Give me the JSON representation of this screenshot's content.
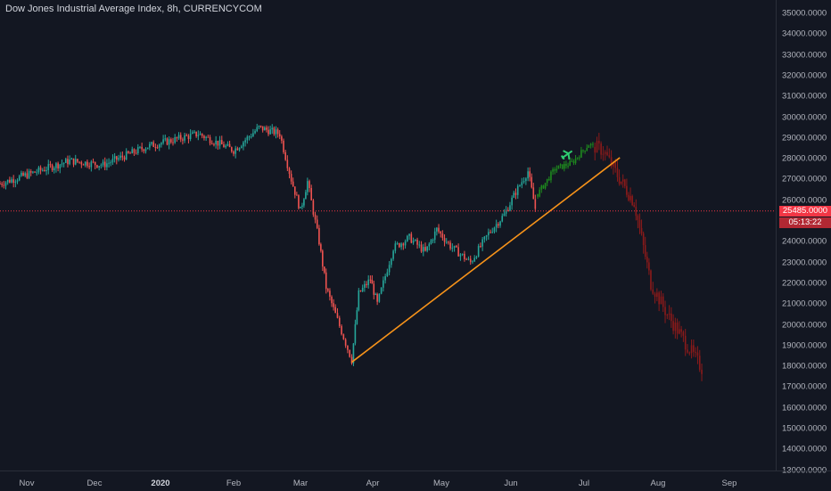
{
  "header": {
    "title": "Dow Jones Industrial Average Index, 8h, CURRENCYCOM"
  },
  "price_axis": {
    "ticks": [
      "35000.0000",
      "34000.0000",
      "33000.0000",
      "32000.0000",
      "31000.0000",
      "30000.0000",
      "29000.0000",
      "28000.0000",
      "27000.0000",
      "26000.0000",
      "24000.0000",
      "23000.0000",
      "22000.0000",
      "21000.0000",
      "20000.0000",
      "19000.0000",
      "18000.0000",
      "17000.0000",
      "16000.0000",
      "15000.0000",
      "14000.0000",
      "13000.0000"
    ],
    "current_price": "25485.0000",
    "countdown": "05:13:22",
    "hidden_tick": "25"
  },
  "time_axis": {
    "ticks": [
      "Nov",
      "Dec",
      "2020",
      "Feb",
      "Mar",
      "Apr",
      "May",
      "Jun",
      "Jul",
      "Aug",
      "Sep"
    ]
  },
  "colors": {
    "up": "#26a69a",
    "down": "#ef5350",
    "projection_up": "#1e8a1e",
    "projection_down": "#8b1a1a",
    "trendline": "#f7931a",
    "price_line": "#f23645"
  },
  "chart_data": {
    "type": "candlestick",
    "title": "Dow Jones Industrial Average Index, 8h, CURRENCYCOM",
    "y_range": [
      13000,
      35500
    ],
    "current_price": 25485,
    "trendline": {
      "from": [
        "2020-03-23",
        18200
      ],
      "to": [
        "2020-07-16",
        28050
      ]
    },
    "path_keypoints": [
      [
        "2019-10-24",
        26800
      ],
      [
        "2019-11-20",
        27900
      ],
      [
        "2019-12-05",
        27700
      ],
      [
        "2019-12-26",
        28600
      ],
      [
        "2020-01-17",
        29200
      ],
      [
        "2020-02-01",
        28400
      ],
      [
        "2020-02-12",
        29500
      ],
      [
        "2020-02-21",
        29200
      ],
      [
        "2020-02-26",
        27000
      ],
      [
        "2020-03-01",
        25500
      ],
      [
        "2020-03-04",
        26900
      ],
      [
        "2020-03-09",
        24000
      ],
      [
        "2020-03-12",
        21800
      ],
      [
        "2020-03-16",
        20500
      ],
      [
        "2020-03-23",
        18300
      ],
      [
        "2020-03-26",
        21500
      ],
      [
        "2020-03-31",
        22200
      ],
      [
        "2020-04-03",
        21000
      ],
      [
        "2020-04-10",
        23700
      ],
      [
        "2020-04-17",
        24200
      ],
      [
        "2020-04-24",
        23500
      ],
      [
        "2020-04-29",
        24600
      ],
      [
        "2020-05-05",
        23800
      ],
      [
        "2020-05-14",
        23000
      ],
      [
        "2020-05-22",
        24400
      ],
      [
        "2020-05-29",
        25300
      ],
      [
        "2020-06-03",
        26400
      ],
      [
        "2020-06-08",
        27400
      ],
      [
        "2020-06-11",
        25600
      ]
    ],
    "projection_keypoints": [
      [
        "2020-06-12",
        26300
      ],
      [
        "2020-06-19",
        27500
      ],
      [
        "2020-06-26",
        27800
      ],
      [
        "2020-07-03",
        28700
      ],
      [
        "2020-07-09",
        28400
      ],
      [
        "2020-07-15",
        27200
      ],
      [
        "2020-07-22",
        25900
      ],
      [
        "2020-07-29",
        22000
      ],
      [
        "2020-08-05",
        20500
      ],
      [
        "2020-08-12",
        19300
      ],
      [
        "2020-08-20",
        17900
      ]
    ]
  }
}
